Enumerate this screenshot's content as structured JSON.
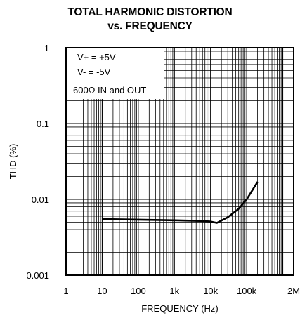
{
  "chart_data": {
    "type": "line",
    "title": "TOTAL HARMONIC DISTORTION",
    "subtitle": "vs. FREQUENCY",
    "xlabel": "FREQUENCY (Hz)",
    "ylabel": "THD (%)",
    "x_scale": "log",
    "y_scale": "log",
    "xlim": [
      1,
      2000000
    ],
    "ylim": [
      0.001,
      1
    ],
    "grid": true,
    "x_ticks": [
      {
        "value": 1,
        "label": "1"
      },
      {
        "value": 10,
        "label": "10"
      },
      {
        "value": 100,
        "label": "100"
      },
      {
        "value": 1000,
        "label": "1k"
      },
      {
        "value": 10000,
        "label": "10k"
      },
      {
        "value": 100000,
        "label": "100k"
      },
      {
        "value": 2000000,
        "label": "2M"
      }
    ],
    "y_ticks": [
      {
        "value": 1,
        "label": "1"
      },
      {
        "value": 0.1,
        "label": "0.1"
      },
      {
        "value": 0.01,
        "label": "0.01"
      },
      {
        "value": 0.001,
        "label": "0.001"
      }
    ],
    "annotations": [
      "V+ = +5V",
      "V- = -5V",
      "600Ω IN and OUT"
    ],
    "series": [
      {
        "x": [
          10,
          100,
          1000,
          5000,
          10000,
          15000,
          30000,
          60000,
          100000,
          200000
        ],
        "y": [
          0.0055,
          0.0054,
          0.0053,
          0.0052,
          0.0051,
          0.0049,
          0.0058,
          0.0075,
          0.01,
          0.017
        ]
      }
    ]
  }
}
